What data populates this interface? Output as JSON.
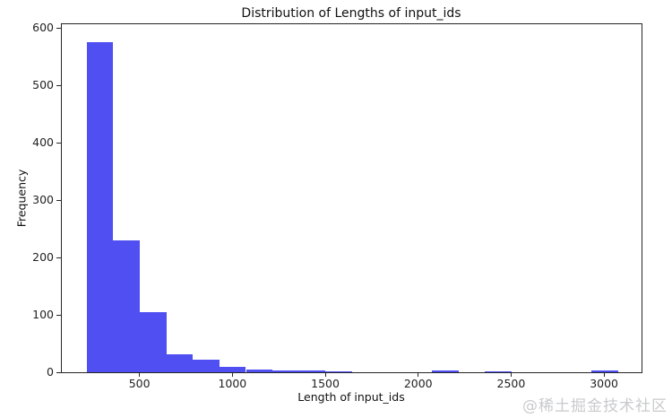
{
  "chart_data": {
    "type": "bar",
    "subtype": "histogram",
    "title": "Distribution of Lengths of input_ids",
    "xlabel": "Length of input_ids",
    "ylabel": "Frequency",
    "bar_color": "#4f4ff2",
    "grid": false,
    "legend": "none",
    "bin_start": 215,
    "bin_width": 143,
    "counts": [
      575,
      230,
      105,
      31,
      22,
      9,
      5,
      3,
      3,
      2,
      0,
      0,
      0,
      3,
      0,
      1,
      0,
      0,
      0,
      3
    ],
    "xticks": [
      500,
      1000,
      1500,
      2000,
      2500,
      3000
    ],
    "yticks": [
      0,
      100,
      200,
      300,
      400,
      500,
      600
    ],
    "xlim": [
      82,
      3202
    ],
    "ylim": [
      0,
      607
    ]
  },
  "watermark": "@稀土掘金技术社区"
}
